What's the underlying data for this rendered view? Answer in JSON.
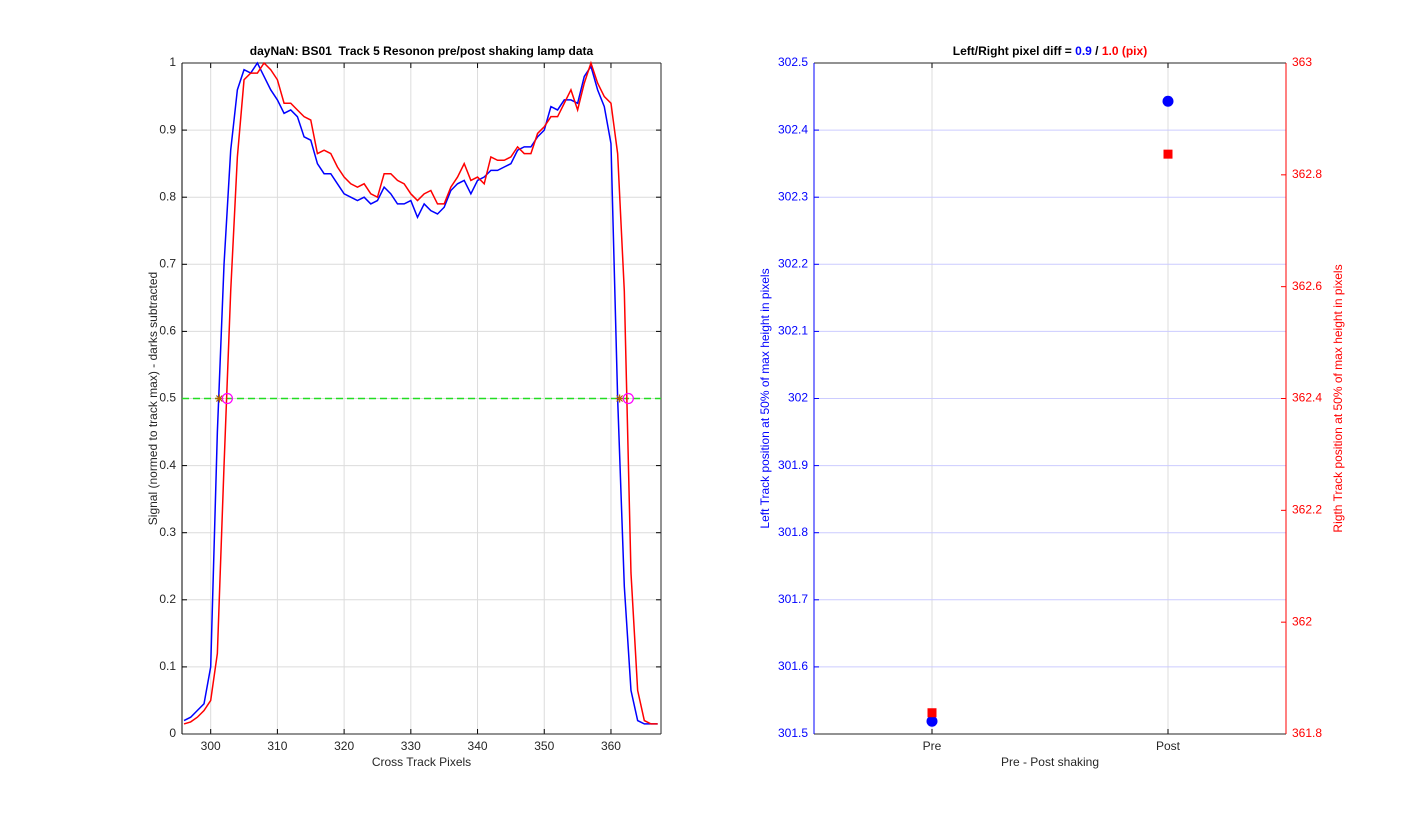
{
  "chart_data": [
    {
      "type": "line",
      "title": "dayNaN: BS01  Track 5 Resonon pre/post shaking lamp data",
      "xlabel": "Cross Track Pixels",
      "ylabel": "Signal (normed to track max) - darks subtracted",
      "xlim": [
        295.7,
        367.5
      ],
      "ylim": [
        0,
        1
      ],
      "xticks": [
        300,
        310,
        320,
        330,
        340,
        350,
        360
      ],
      "yticks": [
        0,
        0.1,
        0.2,
        0.3,
        0.4,
        0.5,
        0.6,
        0.7,
        0.8,
        0.9,
        1
      ],
      "grid": true,
      "grid_color": "#dcdcdc",
      "x": [
        296,
        297,
        298,
        299,
        300,
        301,
        302,
        303,
        304,
        305,
        306,
        307,
        308,
        309,
        310,
        311,
        312,
        313,
        314,
        315,
        316,
        317,
        318,
        319,
        320,
        321,
        322,
        323,
        324,
        325,
        326,
        327,
        328,
        329,
        330,
        331,
        332,
        333,
        334,
        335,
        336,
        337,
        338,
        339,
        340,
        341,
        342,
        343,
        344,
        345,
        346,
        347,
        348,
        349,
        350,
        351,
        352,
        353,
        354,
        355,
        356,
        357,
        358,
        359,
        360,
        361,
        362,
        363,
        364,
        365,
        366,
        367
      ],
      "series": [
        {
          "color": "#0000ff",
          "values": [
            0.02,
            0.025,
            0.035,
            0.045,
            0.1,
            0.45,
            0.7,
            0.87,
            0.96,
            0.99,
            0.985,
            1.0,
            0.98,
            0.96,
            0.945,
            0.925,
            0.93,
            0.92,
            0.89,
            0.885,
            0.85,
            0.835,
            0.835,
            0.82,
            0.805,
            0.8,
            0.795,
            0.8,
            0.79,
            0.795,
            0.815,
            0.805,
            0.79,
            0.79,
            0.795,
            0.77,
            0.79,
            0.78,
            0.775,
            0.785,
            0.81,
            0.82,
            0.825,
            0.805,
            0.825,
            0.83,
            0.84,
            0.84,
            0.845,
            0.85,
            0.87,
            0.875,
            0.875,
            0.89,
            0.9,
            0.935,
            0.93,
            0.945,
            0.945,
            0.94,
            0.98,
            0.995,
            0.96,
            0.935,
            0.88,
            0.5,
            0.22,
            0.065,
            0.02,
            0.015,
            0.015,
            0.015
          ]
        },
        {
          "color": "#ff0000",
          "values": [
            0.015,
            0.018,
            0.025,
            0.035,
            0.05,
            0.12,
            0.4,
            0.66,
            0.86,
            0.975,
            0.985,
            0.985,
            1.0,
            0.99,
            0.975,
            0.94,
            0.94,
            0.93,
            0.92,
            0.915,
            0.865,
            0.87,
            0.865,
            0.845,
            0.83,
            0.82,
            0.815,
            0.82,
            0.805,
            0.8,
            0.835,
            0.835,
            0.825,
            0.82,
            0.805,
            0.795,
            0.805,
            0.81,
            0.79,
            0.79,
            0.815,
            0.83,
            0.85,
            0.825,
            0.83,
            0.82,
            0.86,
            0.855,
            0.855,
            0.86,
            0.875,
            0.865,
            0.865,
            0.895,
            0.905,
            0.92,
            0.92,
            0.94,
            0.96,
            0.93,
            0.97,
            1.0,
            0.97,
            0.95,
            0.94,
            0.865,
            0.66,
            0.24,
            0.065,
            0.02,
            0.015,
            0.015
          ]
        }
      ],
      "hline": {
        "y": 0.5,
        "color": "#22dd22",
        "dashed": true
      },
      "markers": [
        {
          "shape": "star",
          "color": "#b06000",
          "x": [
            301.3,
            361.3
          ],
          "y": [
            0.5,
            0.5
          ]
        },
        {
          "shape": "circle",
          "color": "#ff00ff",
          "x": [
            302.5,
            362.6
          ],
          "y": [
            0.5,
            0.5
          ]
        }
      ]
    },
    {
      "type": "scatter",
      "title_parts": [
        {
          "text": "Left/Right pixel diff = ",
          "color": "#000000"
        },
        {
          "text": "0.9",
          "color": "#0000ff"
        },
        {
          "text": " / ",
          "color": "#000000"
        },
        {
          "text": "1.0 (pix)",
          "color": "#ff0000"
        }
      ],
      "xlabel": "Pre - Post shaking",
      "ylabel": "Left Track position at 50% of max height in pixels",
      "y2label": "Rigth Track position at 50% of max height in pixels",
      "xlim": [
        0.5,
        2.5
      ],
      "xticks": [
        {
          "value": 1,
          "label": "Pre"
        },
        {
          "value": 2,
          "label": "Post"
        }
      ],
      "ylim": [
        301.5,
        302.5
      ],
      "yticks": [
        301.5,
        301.6,
        301.7,
        301.8,
        301.9,
        302,
        302.1,
        302.2,
        302.3,
        302.4,
        302.5
      ],
      "y2lim": [
        361.8,
        363
      ],
      "y2ticks": [
        361.8,
        362,
        362.2,
        362.4,
        362.6,
        362.8,
        363
      ],
      "grid": true,
      "grid_color": "#dcdcdc",
      "ygrid_color": "#ccccff",
      "ycolor": "#0000ff",
      "y2color": "#ff0000",
      "x": [
        1,
        2
      ],
      "series": [
        {
          "color": "#0000ff",
          "marker": "circle",
          "values": [
            301.519,
            302.443
          ]
        },
        {
          "color": "#ff0000",
          "marker": "square",
          "axis": "y2",
          "values": [
            361.838,
            362.837
          ]
        }
      ]
    }
  ]
}
